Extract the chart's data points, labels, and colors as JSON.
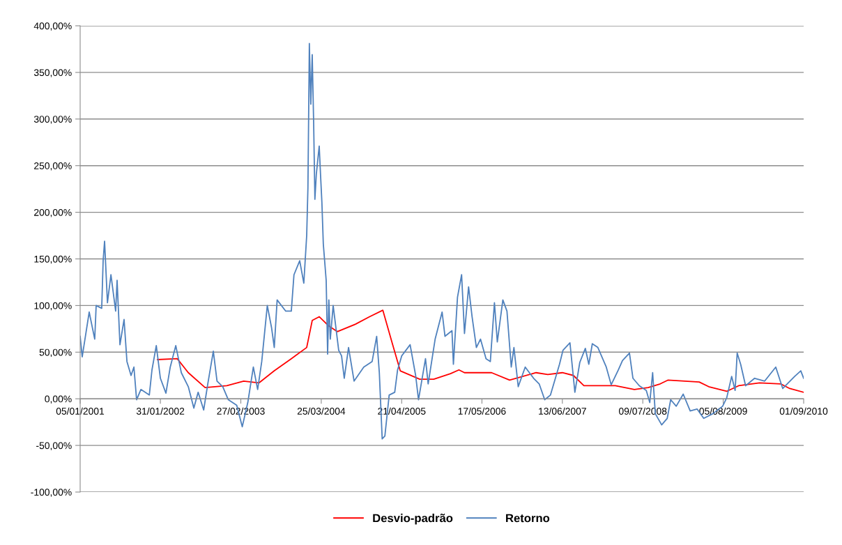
{
  "chart_data": {
    "type": "line",
    "xlim": [
      "2001-01-05",
      "2010-09-01"
    ],
    "xticks": [
      {
        "value": "2001-01-05",
        "label": "05/01/2001"
      },
      {
        "value": "2002-01-31",
        "label": "31/01/2002"
      },
      {
        "value": "2003-02-27",
        "label": "27/02/2003"
      },
      {
        "value": "2004-03-25",
        "label": "25/03/2004"
      },
      {
        "value": "2005-04-21",
        "label": "21/04/2005"
      },
      {
        "value": "2006-05-17",
        "label": "17/05/2006"
      },
      {
        "value": "2007-06-13",
        "label": "13/06/2007"
      },
      {
        "value": "2008-07-09",
        "label": "09/07/2008"
      },
      {
        "value": "2009-08-05",
        "label": "05/08/2009"
      },
      {
        "value": "2010-09-01",
        "label": "01/09/2010"
      }
    ],
    "ylim": [
      -100,
      400
    ],
    "yticks": [
      {
        "value": -100,
        "label": "-100,00%"
      },
      {
        "value": -50,
        "label": "-50,00%"
      },
      {
        "value": 0,
        "label": "0,00%"
      },
      {
        "value": 50,
        "label": "50,00%"
      },
      {
        "value": 100,
        "label": "100,00%"
      },
      {
        "value": 150,
        "label": "150,00%"
      },
      {
        "value": 200,
        "label": "200,00%"
      },
      {
        "value": 250,
        "label": "250,00%"
      },
      {
        "value": 300,
        "label": "300,00%"
      },
      {
        "value": 350,
        "label": "350,00%"
      },
      {
        "value": 400,
        "label": "400,00%"
      }
    ],
    "grid": "y",
    "legend": "bottom",
    "marker": "none",
    "line_style": "solid",
    "series": [
      {
        "name": "Desvio-padrão",
        "color": "#ff0000",
        "x": [
          "2002-01-17",
          "2002-04-23",
          "2002-06-16",
          "2002-09-06",
          "2002-12-21",
          "2003-03-13",
          "2003-05-26",
          "2003-08-09",
          "2003-10-31",
          "2004-01-14",
          "2004-02-10",
          "2004-03-15",
          "2004-05-01",
          "2004-06-11",
          "2004-09-08",
          "2004-11-15",
          "2005-01-19",
          "2005-03-04",
          "2005-04-14",
          "2005-07-18",
          "2005-09-24",
          "2005-12-15",
          "2006-01-25",
          "2006-02-21",
          "2006-07-03",
          "2006-09-29",
          "2007-02-05",
          "2007-04-03",
          "2007-06-13",
          "2007-08-06",
          "2007-09-26",
          "2008-02-26",
          "2008-05-29",
          "2008-08-04",
          "2008-10-02",
          "2008-11-08",
          "2009-04-10",
          "2009-05-26",
          "2009-08-22",
          "2009-10-19",
          "2010-01-29",
          "2010-05-12",
          "2010-06-25",
          "2010-09-01"
        ],
        "values": [
          42,
          43,
          28,
          12,
          14,
          19,
          17,
          30,
          43,
          55,
          84,
          88,
          78,
          72,
          80,
          88,
          95,
          61,
          30,
          21,
          21,
          27,
          31,
          28,
          28,
          20,
          28,
          26,
          28,
          25,
          14,
          14,
          10,
          12,
          16,
          20,
          18,
          13,
          8,
          14,
          17,
          16,
          11,
          7
        ]
      },
      {
        "name": "Retorno",
        "color": "#4f81bd",
        "x": [
          "2001-01-05",
          "2001-01-15",
          "2001-02-18",
          "2001-03-17",
          "2001-03-24",
          "2001-04-20",
          "2001-04-27",
          "2001-05-04",
          "2001-05-18",
          "2001-06-04",
          "2001-06-27",
          "2001-07-04",
          "2001-07-18",
          "2001-08-07",
          "2001-08-21",
          "2001-09-10",
          "2001-09-24",
          "2001-10-07",
          "2001-10-28",
          "2001-12-08",
          "2001-12-21",
          "2002-01-11",
          "2002-01-31",
          "2002-02-27",
          "2002-03-20",
          "2002-04-16",
          "2002-05-13",
          "2002-06-16",
          "2002-07-13",
          "2002-08-03",
          "2002-08-30",
          "2002-09-19",
          "2002-10-16",
          "2002-11-03",
          "2002-12-01",
          "2002-12-28",
          "2003-02-07",
          "2003-03-06",
          "2003-04-02",
          "2003-04-29",
          "2003-05-20",
          "2003-06-09",
          "2003-07-06",
          "2003-07-27",
          "2003-08-09",
          "2003-08-23",
          "2003-10-04",
          "2003-10-31",
          "2003-11-13",
          "2003-12-11",
          "2003-12-31",
          "2004-01-14",
          "2004-01-20",
          "2004-01-27",
          "2004-02-03",
          "2004-02-10",
          "2004-02-17",
          "2004-02-23",
          "2004-03-01",
          "2004-03-15",
          "2004-03-22",
          "2004-03-28",
          "2004-04-04",
          "2004-04-18",
          "2004-04-25",
          "2004-05-01",
          "2004-05-08",
          "2004-05-22",
          "2004-06-18",
          "2004-07-02",
          "2004-07-15",
          "2004-08-05",
          "2004-09-01",
          "2004-10-18",
          "2004-11-28",
          "2004-12-20",
          "2005-01-02",
          "2005-01-16",
          "2005-01-29",
          "2005-02-19",
          "2005-03-18",
          "2005-04-01",
          "2005-04-21",
          "2005-06-01",
          "2005-06-28",
          "2005-07-12",
          "2005-08-15",
          "2005-08-28",
          "2005-10-01",
          "2005-11-04",
          "2005-11-18",
          "2005-12-22",
          "2005-12-29",
          "2006-01-18",
          "2006-02-07",
          "2006-02-21",
          "2006-03-13",
          "2006-03-30",
          "2006-04-20",
          "2006-05-10",
          "2006-06-06",
          "2006-06-27",
          "2006-07-17",
          "2006-07-31",
          "2006-08-27",
          "2006-09-16",
          "2006-10-07",
          "2006-10-20",
          "2006-11-10",
          "2006-12-14",
          "2007-01-24",
          "2007-02-20",
          "2007-03-19",
          "2007-04-16",
          "2007-05-30",
          "2007-06-16",
          "2007-07-20",
          "2007-08-13",
          "2007-09-06",
          "2007-10-03",
          "2007-10-20",
          "2007-11-06",
          "2007-12-03",
          "2008-01-13",
          "2008-02-06",
          "2008-03-12",
          "2008-04-01",
          "2008-05-05",
          "2008-05-22",
          "2008-06-22",
          "2008-07-26",
          "2008-08-12",
          "2008-08-26",
          "2008-09-08",
          "2008-10-09",
          "2008-11-05",
          "2008-11-22",
          "2008-12-19",
          "2009-01-22",
          "2009-02-25",
          "2009-03-31",
          "2009-05-02",
          "2009-06-15",
          "2009-08-02",
          "2009-08-22",
          "2009-09-15",
          "2009-10-02",
          "2009-10-12",
          "2009-10-29",
          "2009-11-22",
          "2010-01-05",
          "2010-02-23",
          "2010-04-18",
          "2010-05-22",
          "2010-07-19",
          "2010-08-18",
          "2010-09-01"
        ],
        "values": [
          67,
          45,
          93,
          64,
          100,
          97,
          148,
          169,
          103,
          133,
          94,
          127,
          58,
          85,
          40,
          25,
          34,
          -1,
          10,
          4,
          31,
          57,
          22,
          6,
          34,
          57,
          28,
          13,
          -10,
          7,
          -12,
          16,
          51,
          19,
          13,
          -1,
          -7,
          -30,
          -4,
          34,
          10,
          40,
          100,
          76,
          55,
          106,
          94,
          94,
          133,
          148,
          124,
          175,
          226,
          381,
          316,
          369,
          295,
          214,
          241,
          271,
          238,
          211,
          166,
          127,
          48,
          106,
          64,
          100,
          52,
          46,
          22,
          55,
          19,
          34,
          40,
          67,
          28,
          -43,
          -40,
          4,
          7,
          31,
          46,
          58,
          25,
          -1,
          43,
          16,
          64,
          93,
          67,
          73,
          37,
          109,
          133,
          70,
          120,
          88,
          55,
          64,
          43,
          40,
          103,
          61,
          106,
          94,
          34,
          55,
          13,
          34,
          22,
          16,
          -1,
          4,
          37,
          52,
          60,
          7,
          39,
          54,
          37,
          59,
          55,
          34,
          15,
          31,
          41,
          49,
          22,
          14,
          9,
          -4,
          28,
          -16,
          -28,
          -21,
          -1,
          -8,
          5,
          -13,
          -11,
          -21,
          -16,
          -8,
          1,
          24,
          9,
          49,
          37,
          14,
          22,
          19,
          34,
          11,
          24,
          30,
          22
        ]
      }
    ]
  }
}
